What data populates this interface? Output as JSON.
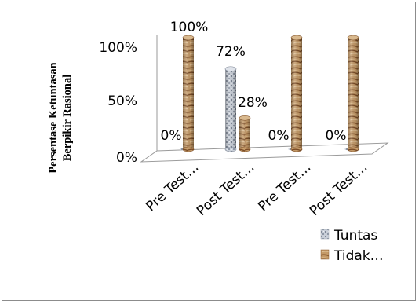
{
  "chart_data": {
    "type": "bar",
    "categories": [
      "Pre Test…",
      "Post Test…",
      "Pre Test…",
      "Post Test…"
    ],
    "series": [
      {
        "name": "Tuntas",
        "values": [
          0,
          72,
          0,
          0
        ],
        "labels": [
          "0%",
          "72%",
          "0%",
          "0%"
        ]
      },
      {
        "name": "Tidak…",
        "values": [
          100,
          28,
          100,
          100
        ],
        "labels": [
          "100%",
          "28%",
          "",
          ""
        ]
      }
    ],
    "ylabel": "Persentase Ketuntasan Berpikir Rasional",
    "yticks": [
      "0%",
      "50%",
      "100%"
    ],
    "ylim": [
      0,
      100
    ],
    "legend": "bottom-right",
    "colors": {
      "tuntas": "#b4bcc8",
      "tidak": "#b98a58"
    }
  }
}
